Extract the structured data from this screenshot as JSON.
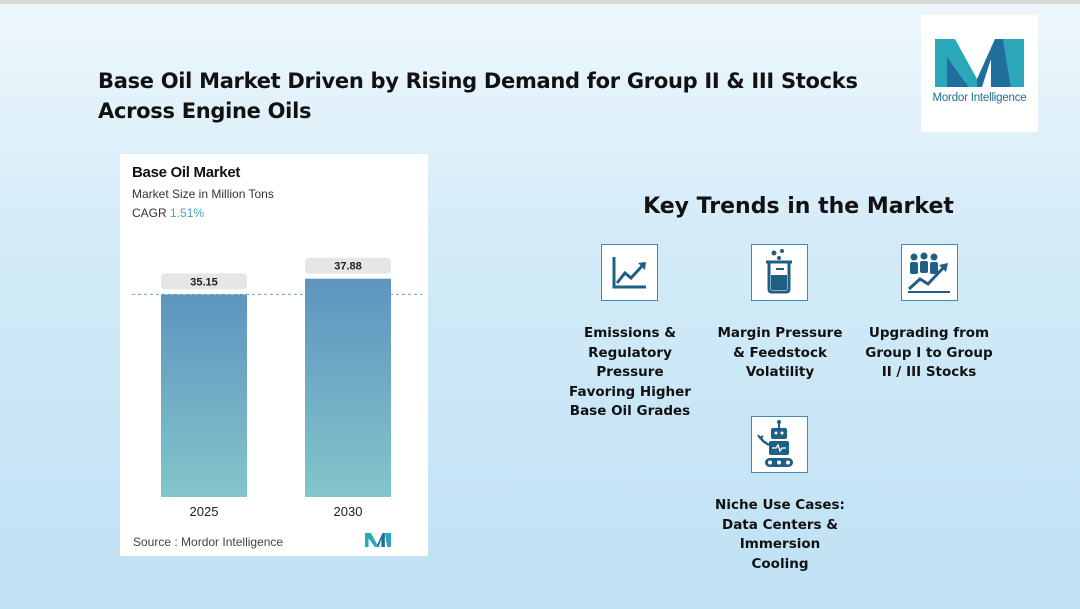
{
  "headline": "Base Oil Market Driven by Rising Demand for Group II & III Stocks Across Engine Oils",
  "brand": {
    "logo_text_part1": "Mordor",
    "logo_text_part2": " Intelligence",
    "colors": {
      "teal": "#2aa7b8",
      "blue": "#1f6e9c"
    }
  },
  "chart_card": {
    "title": "Base Oil Market",
    "subtitle": "Market Size in Million Tons",
    "cagr_label": "CAGR",
    "cagr_value": "1.51%",
    "source_label": "Source :",
    "source_value": "Mordor Intelligence"
  },
  "chart_data": {
    "type": "bar",
    "categories": [
      "2025",
      "2030"
    ],
    "values": [
      35.15,
      37.88
    ],
    "value_labels": [
      "35.15",
      "37.88"
    ],
    "title": "Base Oil Market",
    "subtitle": "Market Size in Million Tons",
    "xlabel": "",
    "ylabel": "",
    "ylim": [
      0,
      38
    ],
    "grid": false,
    "reference_line": "dashed at 2025 value",
    "bar_gradient": [
      "#5d95bf",
      "#83c5ca"
    ]
  },
  "trends": {
    "title": "Key Trends in the Market",
    "items": [
      {
        "icon": "line-chart-up-icon",
        "lines": [
          "Emissions &",
          "Regulatory",
          "Pressure",
          "Favoring Higher",
          "Base Oil Grades"
        ]
      },
      {
        "icon": "beaker-icon",
        "lines": [
          "Margin Pressure",
          "& Feedstock",
          "Volatility"
        ]
      },
      {
        "icon": "people-growth-icon",
        "lines": [
          "Upgrading from",
          "Group I to Group",
          "II / III Stocks"
        ]
      },
      {
        "icon": "robot-icon",
        "lines": [
          "Niche Use Cases:",
          "Data Centers &",
          "Immersion",
          "Cooling"
        ]
      }
    ]
  }
}
